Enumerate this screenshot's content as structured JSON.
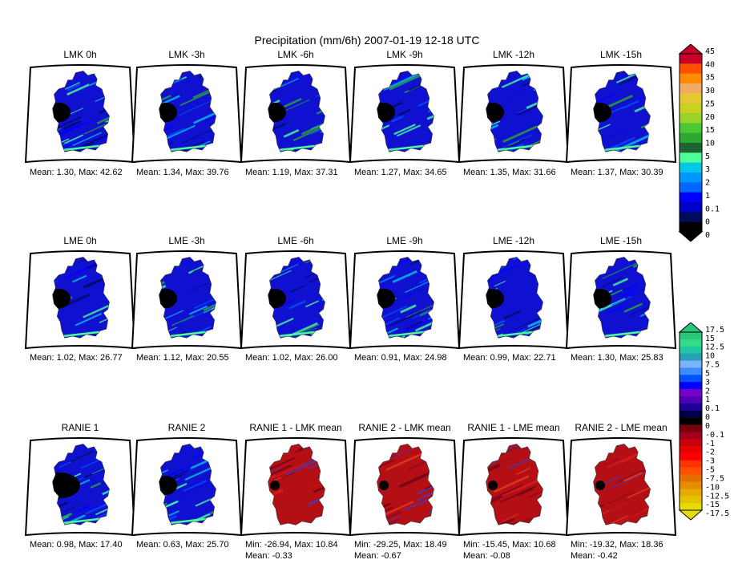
{
  "title": "Precipitation (mm/6h) 2007-01-19 12-18 UTC",
  "rows": [
    [
      {
        "title": "LMK 0h",
        "stat1": "Mean: 1.30, Max: 42.62",
        "stat2": "",
        "kind": "precip",
        "wet": 0.6
      },
      {
        "title": "LMK -3h",
        "stat1": "Mean: 1.34, Max: 39.76",
        "stat2": "",
        "kind": "precip",
        "wet": 0.62
      },
      {
        "title": "LMK -6h",
        "stat1": "Mean: 1.19, Max: 37.31",
        "stat2": "",
        "kind": "precip",
        "wet": 0.55
      },
      {
        "title": "LMK -9h",
        "stat1": "Mean: 1.27, Max: 34.65",
        "stat2": "",
        "kind": "precip",
        "wet": 0.58
      },
      {
        "title": "LMK -12h",
        "stat1": "Mean: 1.35, Max: 31.66",
        "stat2": "",
        "kind": "precip",
        "wet": 0.62
      },
      {
        "title": "LMK -15h",
        "stat1": "Mean: 1.37, Max: 30.39",
        "stat2": "",
        "kind": "precip",
        "wet": 0.63
      }
    ],
    [
      {
        "title": "LME 0h",
        "stat1": "Mean: 1.02, Max: 26.77",
        "stat2": "",
        "kind": "precip",
        "wet": 0.48
      },
      {
        "title": "LME -3h",
        "stat1": "Mean: 1.12, Max: 20.55",
        "stat2": "",
        "kind": "precip",
        "wet": 0.52
      },
      {
        "title": "LME -6h",
        "stat1": "Mean: 1.02, Max: 26.00",
        "stat2": "",
        "kind": "precip",
        "wet": 0.48
      },
      {
        "title": "LME -9h",
        "stat1": "Mean: 0.91, Max: 24.98",
        "stat2": "",
        "kind": "precip",
        "wet": 0.44
      },
      {
        "title": "LME -12h",
        "stat1": "Mean: 0.99, Max: 22.71",
        "stat2": "",
        "kind": "precip",
        "wet": 0.47
      },
      {
        "title": "LME -15h",
        "stat1": "Mean: 1.30, Max: 25.83",
        "stat2": "",
        "kind": "precip",
        "wet": 0.58
      }
    ],
    [
      {
        "title": "RANIE 1",
        "stat1": "Mean: 0.98, Max: 17.40",
        "stat2": "",
        "kind": "precip",
        "wet": 0.35
      },
      {
        "title": "RANIE 2",
        "stat1": "Mean: 0.63, Max: 25.70",
        "stat2": "",
        "kind": "precip",
        "wet": 0.28
      },
      {
        "title": "RANIE 1 - LMK mean",
        "stat1": "Min: -26.94, Max: 10.84",
        "stat2": "Mean: -0.33",
        "kind": "diff",
        "wet": 0.5
      },
      {
        "title": "RANIE 2 - LMK mean",
        "stat1": "Min: -29.25, Max: 18.49",
        "stat2": "Mean: -0.67",
        "kind": "diff",
        "wet": 0.5
      },
      {
        "title": "RANIE 1 - LME mean",
        "stat1": "Min: -15.45, Max: 10.68",
        "stat2": "Mean: -0.08",
        "kind": "diff",
        "wet": 0.5
      },
      {
        "title": "RANIE 2 - LME mean",
        "stat1": "Min: -19.32, Max: 18.36",
        "stat2": "Mean: -0.42",
        "kind": "diff",
        "wet": 0.5
      }
    ]
  ],
  "colorbar_precip": {
    "colors": [
      "#000000",
      "#000b5e",
      "#0000c8",
      "#0000ff",
      "#0068ff",
      "#0096ff",
      "#00c8e6",
      "#4cff9a",
      "#1e6432",
      "#2ea830",
      "#4cc832",
      "#9ad228",
      "#c8d21e",
      "#e6c832",
      "#f0aa64",
      "#ff8c00",
      "#ff5000",
      "#c80028"
    ],
    "labels": [
      "0",
      "0",
      "0.1",
      "1",
      "2",
      "3",
      "5",
      "10",
      "15",
      "20",
      "25",
      "30",
      "35",
      "40",
      "45"
    ]
  },
  "colorbar_diff": {
    "colors": [
      "#e6dc00",
      "#e6c300",
      "#e6aa00",
      "#e68c00",
      "#e66e00",
      "#ff5000",
      "#ff3200",
      "#ff0000",
      "#e60000",
      "#c8000a",
      "#a0001e",
      "#78000a",
      "#000000",
      "#000046",
      "#1e0096",
      "#5000b4",
      "#7800c8",
      "#0000ff",
      "#0050ff",
      "#3c8cff",
      "#78b4ff",
      "#28a0b4",
      "#1ec8a0",
      "#32dc8c",
      "#28c878"
    ],
    "labels": [
      "-17.5",
      "-15",
      "-12.5",
      "-10",
      "-7.5",
      "-5",
      "-3",
      "-2",
      "-1",
      "-0.1",
      "0",
      "0",
      "0.1",
      "1",
      "2",
      "3",
      "5",
      "7.5",
      "10",
      "12.5",
      "15",
      "17.5"
    ]
  }
}
